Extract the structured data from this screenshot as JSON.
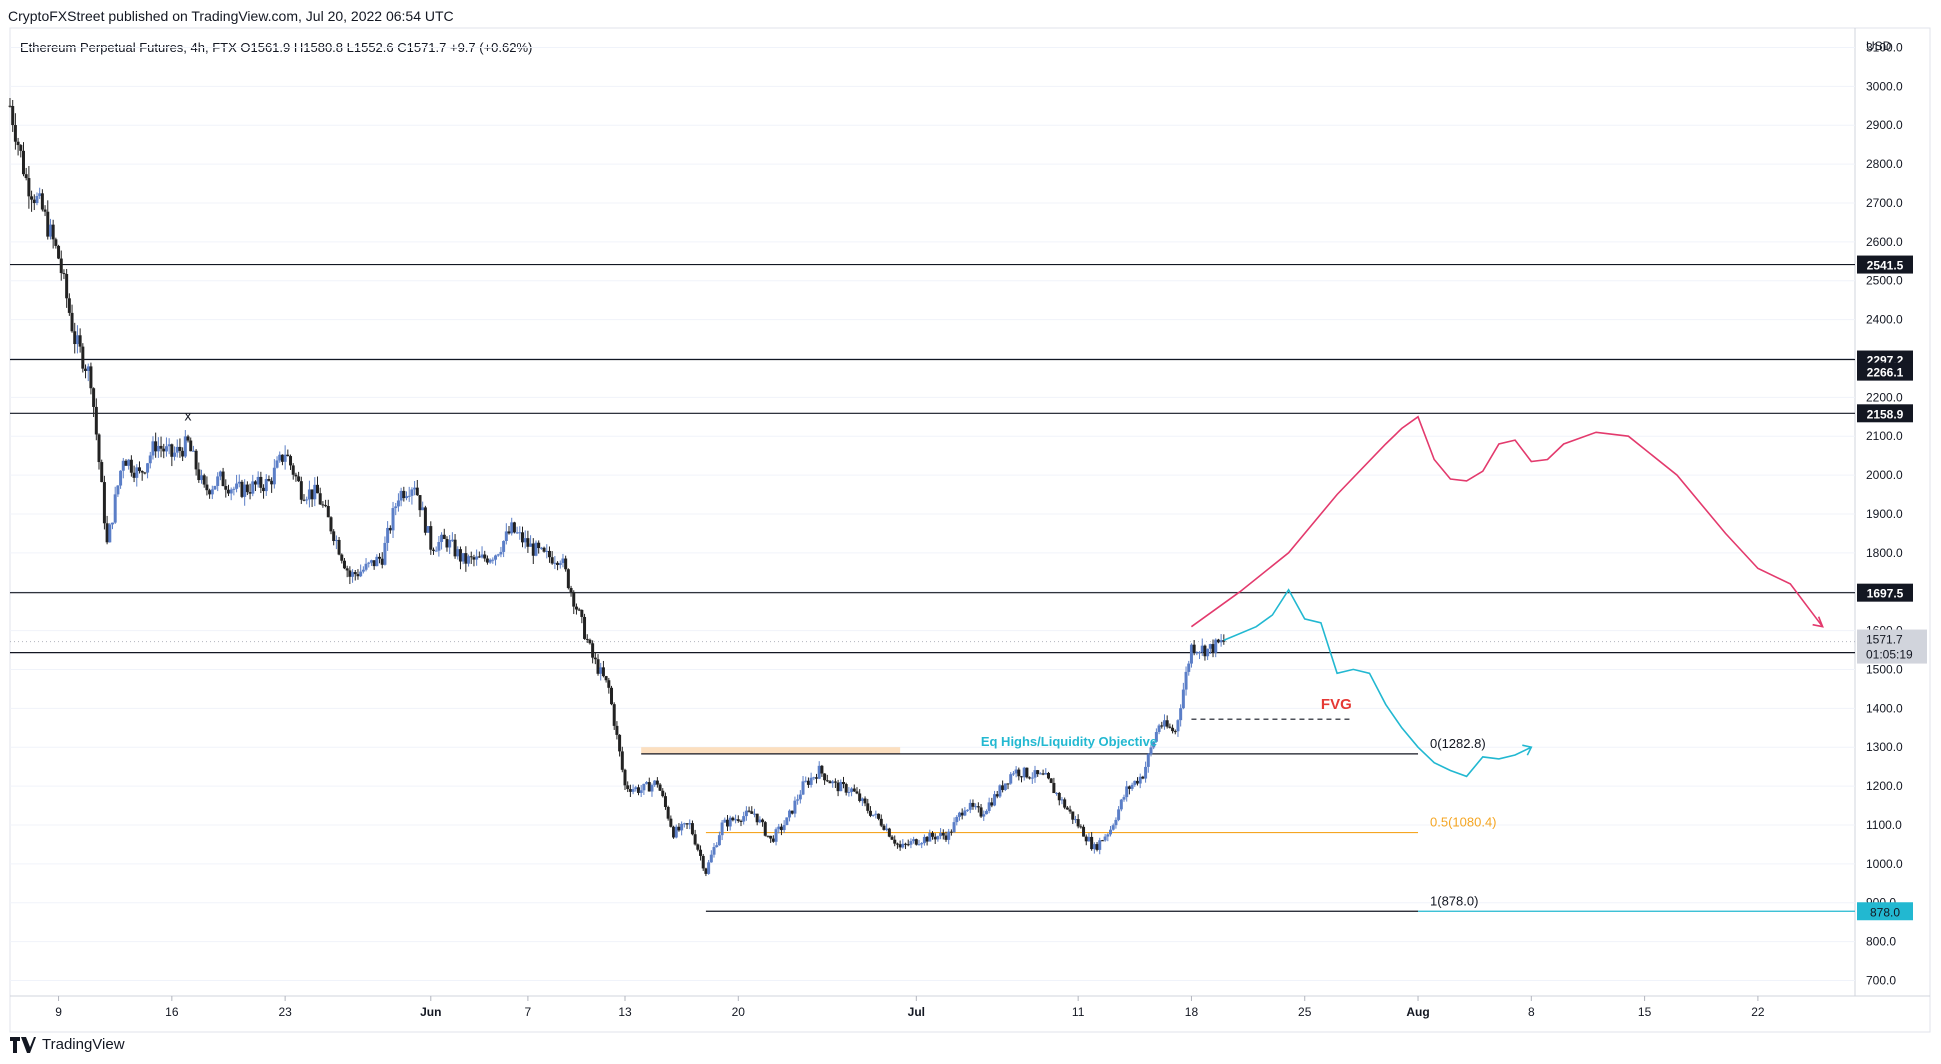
{
  "header": {
    "publish_line": "CryptoFXStreet published on TradingView.com, Jul 20, 2022 06:54 UTC",
    "legend": "Ethereum Perpetual Futures, 4h, FTX  O1561.9  H1580.8  L1552.6  C1571.7  +9.7 (+0.62%)"
  },
  "footer": {
    "brand": "TradingView"
  },
  "colors": {
    "up_candle": "#5b7ec7",
    "down_candle": "#222222",
    "pink_projection": "#e33a6d",
    "cyan_projection": "#22b8d1",
    "orange_level": "#f5a623",
    "fvg_label": "#e53935",
    "zone_fill": "#fcd9b4"
  },
  "chart_data": {
    "type": "candlestick",
    "symbol": "Ethereum Perpetual Futures",
    "interval": "4h",
    "exchange": "FTX",
    "ohlc_last": {
      "open": 1561.9,
      "high": 1580.8,
      "low": 1552.6,
      "close": 1571.7,
      "change": 9.7,
      "change_pct": 0.62
    },
    "currency": "USD",
    "ylim": [
      660,
      3150
    ],
    "x_range": [
      "2022-05-06",
      "2022-08-28"
    ],
    "y_ticks": [
      700,
      800,
      900,
      1000,
      1100,
      1200,
      1300,
      1400,
      1500,
      1600,
      1700,
      1800,
      1900,
      2000,
      2100,
      2200,
      2300,
      2400,
      2500,
      2600,
      2700,
      2800,
      2900,
      3000,
      3100
    ],
    "x_ticks": [
      {
        "date": "2022-05-09",
        "label": "9",
        "bold": false
      },
      {
        "date": "2022-05-16",
        "label": "16",
        "bold": false
      },
      {
        "date": "2022-05-23",
        "label": "23",
        "bold": false
      },
      {
        "date": "2022-06-01",
        "label": "Jun",
        "bold": true
      },
      {
        "date": "2022-06-07",
        "label": "7",
        "bold": false
      },
      {
        "date": "2022-06-13",
        "label": "13",
        "bold": false
      },
      {
        "date": "2022-06-20",
        "label": "20",
        "bold": false
      },
      {
        "date": "2022-07-01",
        "label": "Jul",
        "bold": true
      },
      {
        "date": "2022-07-11",
        "label": "11",
        "bold": false
      },
      {
        "date": "2022-07-18",
        "label": "18",
        "bold": false
      },
      {
        "date": "2022-07-25",
        "label": "25",
        "bold": false
      },
      {
        "date": "2022-08-01",
        "label": "Aug",
        "bold": true
      },
      {
        "date": "2022-08-08",
        "label": "8",
        "bold": false
      },
      {
        "date": "2022-08-15",
        "label": "15",
        "bold": false
      },
      {
        "date": "2022-08-22",
        "label": "22",
        "bold": false
      }
    ],
    "price_path": [
      [
        "2022-05-06",
        2950
      ],
      [
        "2022-05-07",
        2760
      ],
      [
        "2022-05-08",
        2680
      ],
      [
        "2022-05-09",
        2560
      ],
      [
        "2022-05-10",
        2350
      ],
      [
        "2022-05-11",
        2250
      ],
      [
        "2022-05-12",
        1820
      ],
      [
        "2022-05-13",
        2050
      ],
      [
        "2022-05-14",
        2000
      ],
      [
        "2022-05-15",
        2080
      ],
      [
        "2022-05-16",
        2050
      ],
      [
        "2022-05-17",
        2080
      ],
      [
        "2022-05-18",
        1960
      ],
      [
        "2022-05-19",
        1990
      ],
      [
        "2022-05-20",
        1960
      ],
      [
        "2022-05-22",
        1980
      ],
      [
        "2022-05-23",
        2060
      ],
      [
        "2022-05-24",
        1960
      ],
      [
        "2022-05-25",
        1950
      ],
      [
        "2022-05-26",
        1850
      ],
      [
        "2022-05-27",
        1740
      ],
      [
        "2022-05-28",
        1760
      ],
      [
        "2022-05-29",
        1790
      ],
      [
        "2022-05-30",
        1950
      ],
      [
        "2022-05-31",
        1980
      ],
      [
        "2022-06-01",
        1820
      ],
      [
        "2022-06-02",
        1830
      ],
      [
        "2022-06-03",
        1780
      ],
      [
        "2022-06-04",
        1780
      ],
      [
        "2022-06-05",
        1800
      ],
      [
        "2022-06-06",
        1860
      ],
      [
        "2022-06-07",
        1820
      ],
      [
        "2022-06-08",
        1790
      ],
      [
        "2022-06-09",
        1790
      ],
      [
        "2022-06-10",
        1660
      ],
      [
        "2022-06-11",
        1530
      ],
      [
        "2022-06-12",
        1450
      ],
      [
        "2022-06-13",
        1200
      ],
      [
        "2022-06-14",
        1190
      ],
      [
        "2022-06-15",
        1210
      ],
      [
        "2022-06-16",
        1080
      ],
      [
        "2022-06-17",
        1100
      ],
      [
        "2022-06-18",
        980
      ],
      [
        "2022-06-19",
        1100
      ],
      [
        "2022-06-20",
        1120
      ],
      [
        "2022-06-21",
        1130
      ],
      [
        "2022-06-22",
        1060
      ],
      [
        "2022-06-23",
        1110
      ],
      [
        "2022-06-24",
        1200
      ],
      [
        "2022-06-25",
        1240
      ],
      [
        "2022-06-26",
        1200
      ],
      [
        "2022-06-27",
        1190
      ],
      [
        "2022-06-28",
        1140
      ],
      [
        "2022-06-29",
        1100
      ],
      [
        "2022-06-30",
        1040
      ],
      [
        "2022-07-01",
        1060
      ],
      [
        "2022-07-02",
        1070
      ],
      [
        "2022-07-03",
        1075
      ],
      [
        "2022-07-04",
        1150
      ],
      [
        "2022-07-05",
        1130
      ],
      [
        "2022-07-06",
        1180
      ],
      [
        "2022-07-07",
        1240
      ],
      [
        "2022-07-08",
        1230
      ],
      [
        "2022-07-09",
        1220
      ],
      [
        "2022-07-10",
        1160
      ],
      [
        "2022-07-11",
        1100
      ],
      [
        "2022-07-12",
        1040
      ],
      [
        "2022-07-13",
        1090
      ],
      [
        "2022-07-14",
        1190
      ],
      [
        "2022-07-15",
        1230
      ],
      [
        "2022-07-16",
        1360
      ],
      [
        "2022-07-17",
        1340
      ],
      [
        "2022-07-18",
        1560
      ],
      [
        "2022-07-19",
        1550
      ],
      [
        "2022-07-20",
        1571.7
      ]
    ],
    "horizontal_levels": [
      {
        "value": 2541.5,
        "label": "2541.5"
      },
      {
        "value": 2297.2,
        "label": "2297.2"
      },
      {
        "value": 2158.9,
        "label": "2158.9"
      },
      {
        "value": 1697.5,
        "label": "1697.5"
      },
      {
        "value": 1543.3,
        "label": "1543.3"
      }
    ],
    "axis_marks": [
      {
        "value": 2266.1,
        "label": "2266.1"
      }
    ],
    "fib_levels": [
      {
        "ratio": "0",
        "value": 1282.8,
        "label": "0(1282.8)"
      },
      {
        "ratio": "0.5",
        "value": 1080.4,
        "label": "0.5(1080.4)"
      },
      {
        "ratio": "1",
        "value": 878.0,
        "label": "1(878.0)"
      }
    ],
    "current_price": {
      "value": 1571.7,
      "label": "1571.7",
      "countdown": "01:05:19"
    },
    "cyan_level_label": "878.0",
    "annotations": {
      "eq_highs": "Eq Highs/Liquidity Objective",
      "fvg": "FVG",
      "x_marker": "x"
    },
    "projections": {
      "pink": [
        [
          "2022-07-18",
          1610
        ],
        [
          "2022-07-21",
          1700
        ],
        [
          "2022-07-24",
          1800
        ],
        [
          "2022-07-27",
          1950
        ],
        [
          "2022-07-30",
          2080
        ],
        [
          "2022-07-31",
          2120
        ],
        [
          "2022-08-01",
          2150
        ],
        [
          "2022-08-02",
          2040
        ],
        [
          "2022-08-03",
          1990
        ],
        [
          "2022-08-04",
          1985
        ],
        [
          "2022-08-05",
          2010
        ],
        [
          "2022-08-06",
          2080
        ],
        [
          "2022-08-07",
          2090
        ],
        [
          "2022-08-08",
          2035
        ],
        [
          "2022-08-09",
          2040
        ],
        [
          "2022-08-10",
          2080
        ],
        [
          "2022-08-12",
          2110
        ],
        [
          "2022-08-14",
          2100
        ],
        [
          "2022-08-17",
          2000
        ],
        [
          "2022-08-20",
          1850
        ],
        [
          "2022-08-22",
          1760
        ],
        [
          "2022-08-24",
          1720
        ],
        [
          "2022-08-26",
          1610
        ]
      ],
      "cyan": [
        [
          "2022-07-20",
          1575
        ],
        [
          "2022-07-22",
          1610
        ],
        [
          "2022-07-23",
          1640
        ],
        [
          "2022-07-24",
          1705
        ],
        [
          "2022-07-25",
          1630
        ],
        [
          "2022-07-26",
          1620
        ],
        [
          "2022-07-27",
          1490
        ],
        [
          "2022-07-28",
          1500
        ],
        [
          "2022-07-29",
          1490
        ],
        [
          "2022-07-30",
          1410
        ],
        [
          "2022-07-31",
          1350
        ],
        [
          "2022-08-01",
          1300
        ],
        [
          "2022-08-02",
          1260
        ],
        [
          "2022-08-03",
          1240
        ],
        [
          "2022-08-04",
          1225
        ],
        [
          "2022-08-05",
          1275
        ],
        [
          "2022-08-06",
          1270
        ],
        [
          "2022-08-07",
          1280
        ],
        [
          "2022-08-08",
          1300
        ]
      ]
    },
    "zone": {
      "from": "2022-06-14",
      "to": "2022-06-30",
      "low": 1282.8,
      "high": 1300
    },
    "fvg_line": {
      "from": "2022-07-18",
      "to": "2022-07-28",
      "value": 1372
    },
    "x_marker_point": {
      "date": "2022-05-17",
      "value": 2140
    }
  }
}
